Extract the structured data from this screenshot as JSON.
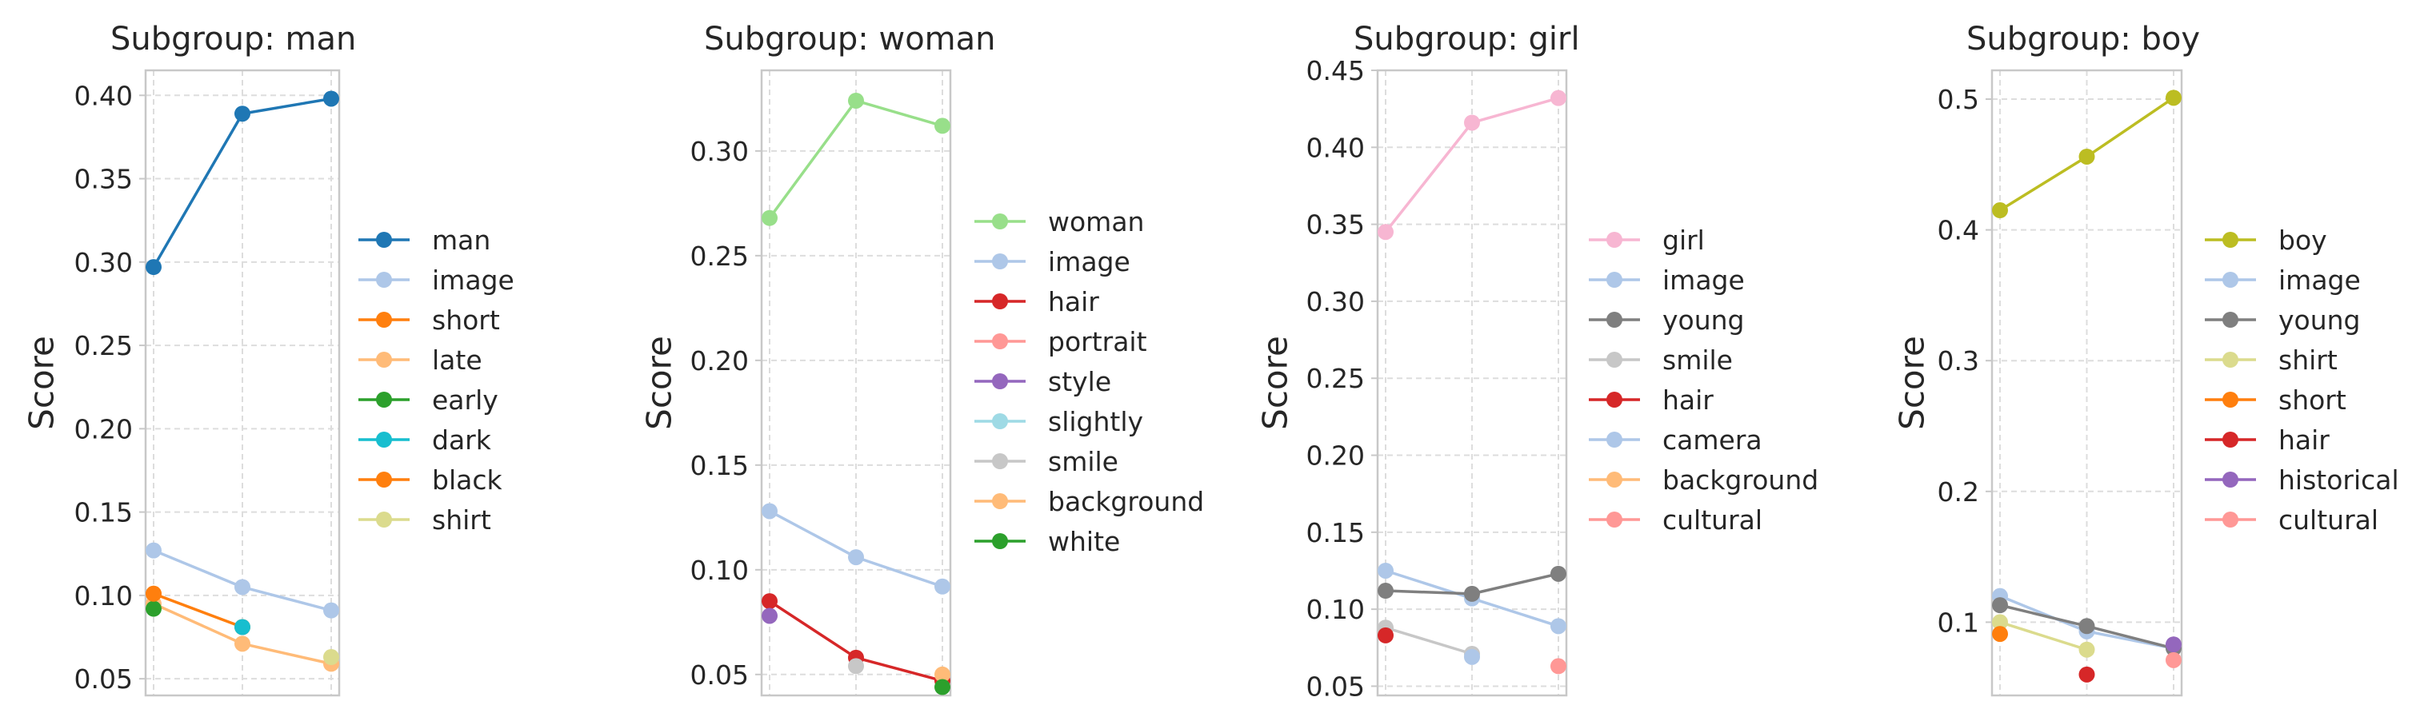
{
  "chart_data": [
    {
      "type": "line",
      "title": "Subgroup: man",
      "ylabel": "Score",
      "xlabel": "",
      "x": [
        0,
        1,
        2
      ],
      "ylim": [
        0.04,
        0.415
      ],
      "yticks": [
        0.05,
        0.1,
        0.15,
        0.2,
        0.25,
        0.3,
        0.35,
        0.4
      ],
      "ytick_labels": [
        "0.05",
        "0.10",
        "0.15",
        "0.20",
        "0.25",
        "0.30",
        "0.35",
        "0.40"
      ],
      "grid": true,
      "legend_position": "right",
      "series": [
        {
          "name": "man",
          "color": "#1f77b4",
          "values": [
            0.297,
            0.389,
            0.398
          ]
        },
        {
          "name": "image",
          "color": "#aec7e8",
          "values": [
            0.127,
            0.105,
            0.091
          ]
        },
        {
          "name": "short",
          "color": "#ff7f0e",
          "values": [
            0.101,
            0.081,
            null
          ]
        },
        {
          "name": "late",
          "color": "#ffbb78",
          "values": [
            0.095,
            0.071,
            0.059
          ]
        },
        {
          "name": "early",
          "color": "#2ca02c",
          "values": [
            0.092,
            null,
            null
          ]
        },
        {
          "name": "dark",
          "color": "#17becf",
          "values": [
            null,
            0.081,
            null
          ]
        },
        {
          "name": "black",
          "color": "#ff7f0e",
          "values": [
            0.101,
            null,
            null
          ]
        },
        {
          "name": "shirt",
          "color": "#dbdb8d",
          "values": [
            null,
            null,
            0.063
          ]
        }
      ]
    },
    {
      "type": "line",
      "title": "Subgroup: woman",
      "ylabel": "Score",
      "xlabel": "",
      "x": [
        0,
        1,
        2
      ],
      "ylim": [
        0.04,
        0.3385
      ],
      "yticks": [
        0.05,
        0.1,
        0.15,
        0.2,
        0.25,
        0.3
      ],
      "ytick_labels": [
        "0.05",
        "0.10",
        "0.15",
        "0.20",
        "0.25",
        "0.30"
      ],
      "grid": true,
      "legend_position": "right",
      "series": [
        {
          "name": "woman",
          "color": "#98df8a",
          "values": [
            0.268,
            0.324,
            0.312
          ]
        },
        {
          "name": "image",
          "color": "#aec7e8",
          "values": [
            0.128,
            0.106,
            0.092
          ]
        },
        {
          "name": "hair",
          "color": "#d62728",
          "values": [
            0.085,
            0.058,
            0.047
          ]
        },
        {
          "name": "portrait",
          "color": "#ff9896",
          "values": [
            null,
            null,
            null
          ]
        },
        {
          "name": "style",
          "color": "#9467bd",
          "values": [
            0.078,
            null,
            null
          ]
        },
        {
          "name": "slightly",
          "color": "#9edae5",
          "values": [
            null,
            null,
            null
          ]
        },
        {
          "name": "smile",
          "color": "#c7c7c7",
          "values": [
            null,
            0.054,
            null
          ]
        },
        {
          "name": "background",
          "color": "#ffbb78",
          "values": [
            null,
            null,
            0.05
          ]
        },
        {
          "name": "white",
          "color": "#2ca02c",
          "values": [
            null,
            null,
            0.044
          ]
        }
      ]
    },
    {
      "type": "line",
      "title": "Subgroup: girl",
      "ylabel": "Score",
      "xlabel": "",
      "x": [
        0,
        1,
        2
      ],
      "ylim": [
        0.044,
        0.45
      ],
      "yticks": [
        0.05,
        0.1,
        0.15,
        0.2,
        0.25,
        0.3,
        0.35,
        0.4,
        0.45
      ],
      "ytick_labels": [
        "0.05",
        "0.10",
        "0.15",
        "0.20",
        "0.25",
        "0.30",
        "0.35",
        "0.40",
        "0.45"
      ],
      "grid": true,
      "legend_position": "right",
      "series": [
        {
          "name": "girl",
          "color": "#f7b6d2",
          "values": [
            0.345,
            0.416,
            0.432
          ]
        },
        {
          "name": "image",
          "color": "#aec7e8",
          "values": [
            0.125,
            0.107,
            0.089
          ]
        },
        {
          "name": "young",
          "color": "#7f7f7f",
          "values": [
            0.112,
            0.11,
            0.123
          ]
        },
        {
          "name": "smile",
          "color": "#c7c7c7",
          "values": [
            0.088,
            0.071,
            null
          ]
        },
        {
          "name": "hair",
          "color": "#d62728",
          "values": [
            0.083,
            null,
            null
          ]
        },
        {
          "name": "camera",
          "color": "#aec7e8",
          "values": [
            null,
            0.069,
            null
          ]
        },
        {
          "name": "background",
          "color": "#ffbb78",
          "values": [
            null,
            null,
            null
          ]
        },
        {
          "name": "cultural",
          "color": "#ff9896",
          "values": [
            null,
            null,
            0.063
          ]
        }
      ]
    },
    {
      "type": "line",
      "title": "Subgroup: boy",
      "ylabel": "Score",
      "xlabel": "",
      "x": [
        0,
        1,
        2
      ],
      "ylim": [
        0.044,
        0.522
      ],
      "yticks": [
        0.1,
        0.2,
        0.3,
        0.4,
        0.5
      ],
      "ytick_labels": [
        "0.1",
        "0.2",
        "0.3",
        "0.4",
        "0.5"
      ],
      "grid": true,
      "legend_position": "right",
      "series": [
        {
          "name": "boy",
          "color": "#bcbd22",
          "values": [
            0.415,
            0.456,
            0.501
          ]
        },
        {
          "name": "image",
          "color": "#aec7e8",
          "values": [
            0.12,
            0.093,
            0.08
          ]
        },
        {
          "name": "young",
          "color": "#7f7f7f",
          "values": [
            0.113,
            0.097,
            0.08
          ]
        },
        {
          "name": "shirt",
          "color": "#dbdb8d",
          "values": [
            0.1,
            0.079,
            null
          ]
        },
        {
          "name": "short",
          "color": "#ff7f0e",
          "values": [
            0.091,
            null,
            null
          ]
        },
        {
          "name": "hair",
          "color": "#d62728",
          "values": [
            null,
            0.06,
            null
          ]
        },
        {
          "name": "historical",
          "color": "#9467bd",
          "values": [
            null,
            null,
            0.083
          ]
        },
        {
          "name": "cultural",
          "color": "#ff9896",
          "values": [
            null,
            null,
            0.071
          ]
        }
      ]
    }
  ]
}
